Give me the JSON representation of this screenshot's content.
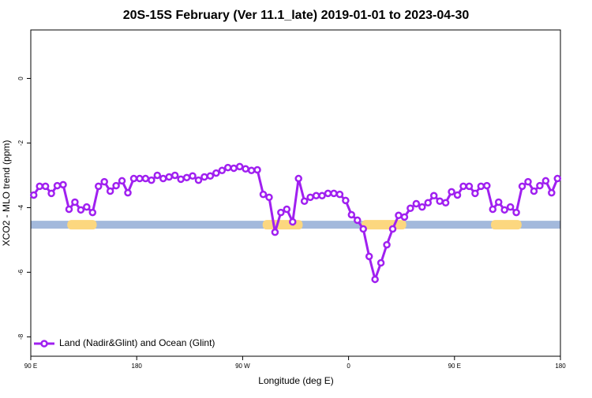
{
  "chart_data": {
    "type": "line",
    "title": "20S-15S February (Ver 11.1_late)   2019-01-01 to 2023-04-30",
    "x_label": "Longitude (deg E)",
    "y_label": "XCO2 - MLO trend (ppm)",
    "xlim": [
      90,
      540
    ],
    "ylim": [
      -8.6,
      1.5
    ],
    "xticks": [
      {
        "value": 90,
        "label": "90 E"
      },
      180,
      {
        "value": 270,
        "label": "90 W"
      },
      {
        "value": 360,
        "label": "0"
      },
      {
        "value": 450,
        "label": "90 E"
      },
      {
        "value": 540,
        "label": "180"
      }
    ],
    "yticks": [
      0,
      -2,
      -4,
      -6,
      -8
    ],
    "legend": "bottom-left",
    "surface_band": {
      "y": -4.53,
      "color": "#a3b9dc",
      "land_color": "#fcd77f",
      "land_ranges": [
        [
          121,
          146
        ],
        [
          287,
          321
        ],
        [
          371,
          409
        ],
        [
          481,
          507
        ]
      ]
    },
    "series": [
      {
        "name": "Land (Nadir&Glint) and Ocean (Glint)",
        "color": "#a020f0",
        "x": [
          92.5,
          97.5,
          102.5,
          107.5,
          112.5,
          117.5,
          122.5,
          127.5,
          132.5,
          137.5,
          142.5,
          147.5,
          152.5,
          157.5,
          162.5,
          167.5,
          172.5,
          177.5,
          182.5,
          187.5,
          192.5,
          197.5,
          202.5,
          207.5,
          212.5,
          217.5,
          222.5,
          227.5,
          232.5,
          237.5,
          242.5,
          247.5,
          252.5,
          257.5,
          262.5,
          267.5,
          272.5,
          277.5,
          282.5,
          287.5,
          292.5,
          297.5,
          302.5,
          307.5,
          312.5,
          317.5,
          322.5,
          327.5,
          332.5,
          337.5,
          342.5,
          347.5,
          352.5,
          357.5,
          362.5,
          367.5,
          372.5,
          377.5,
          382.5,
          387.5,
          392.5,
          397.5,
          402.5,
          407.5,
          412.5,
          417.5,
          422.5,
          427.5,
          432.5,
          437.5,
          442.5,
          447.5,
          452.5,
          457.5,
          462.5,
          467.5,
          472.5,
          477.5,
          482.5,
          487.5,
          492.5,
          497.5,
          502.5,
          507.5,
          512.5,
          517.5,
          522.5,
          527.5,
          532.5,
          537.5
        ],
        "values": [
          -3.61,
          -3.34,
          -3.34,
          -3.56,
          -3.32,
          -3.29,
          -4.05,
          -3.83,
          -4.07,
          -3.98,
          -4.15,
          -3.34,
          -3.2,
          -3.49,
          -3.32,
          -3.17,
          -3.54,
          -3.1,
          -3.1,
          -3.1,
          -3.15,
          -3.0,
          -3.1,
          -3.05,
          -3.0,
          -3.12,
          -3.07,
          -3.02,
          -3.15,
          -3.05,
          -3.02,
          -2.93,
          -2.85,
          -2.76,
          -2.78,
          -2.73,
          -2.8,
          -2.85,
          -2.83,
          -3.59,
          -3.68,
          -4.76,
          -4.15,
          -4.05,
          -4.44,
          -3.1,
          -3.8,
          -3.68,
          -3.63,
          -3.63,
          -3.56,
          -3.56,
          -3.59,
          -3.78,
          -4.22,
          -4.39,
          -4.66,
          -5.51,
          -6.22,
          -5.71,
          -5.15,
          -4.66,
          -4.24,
          -4.29,
          -4.02,
          -3.88,
          -3.98,
          -3.85,
          -3.63,
          -3.8,
          -3.85,
          -3.51,
          -3.61,
          -3.34,
          -3.34,
          -3.56,
          -3.34,
          -3.32,
          -4.05,
          -3.83,
          -4.07,
          -3.98,
          -4.15,
          -3.34,
          -3.2,
          -3.49,
          -3.32,
          -3.17,
          -3.54,
          -3.1
        ]
      }
    ]
  }
}
